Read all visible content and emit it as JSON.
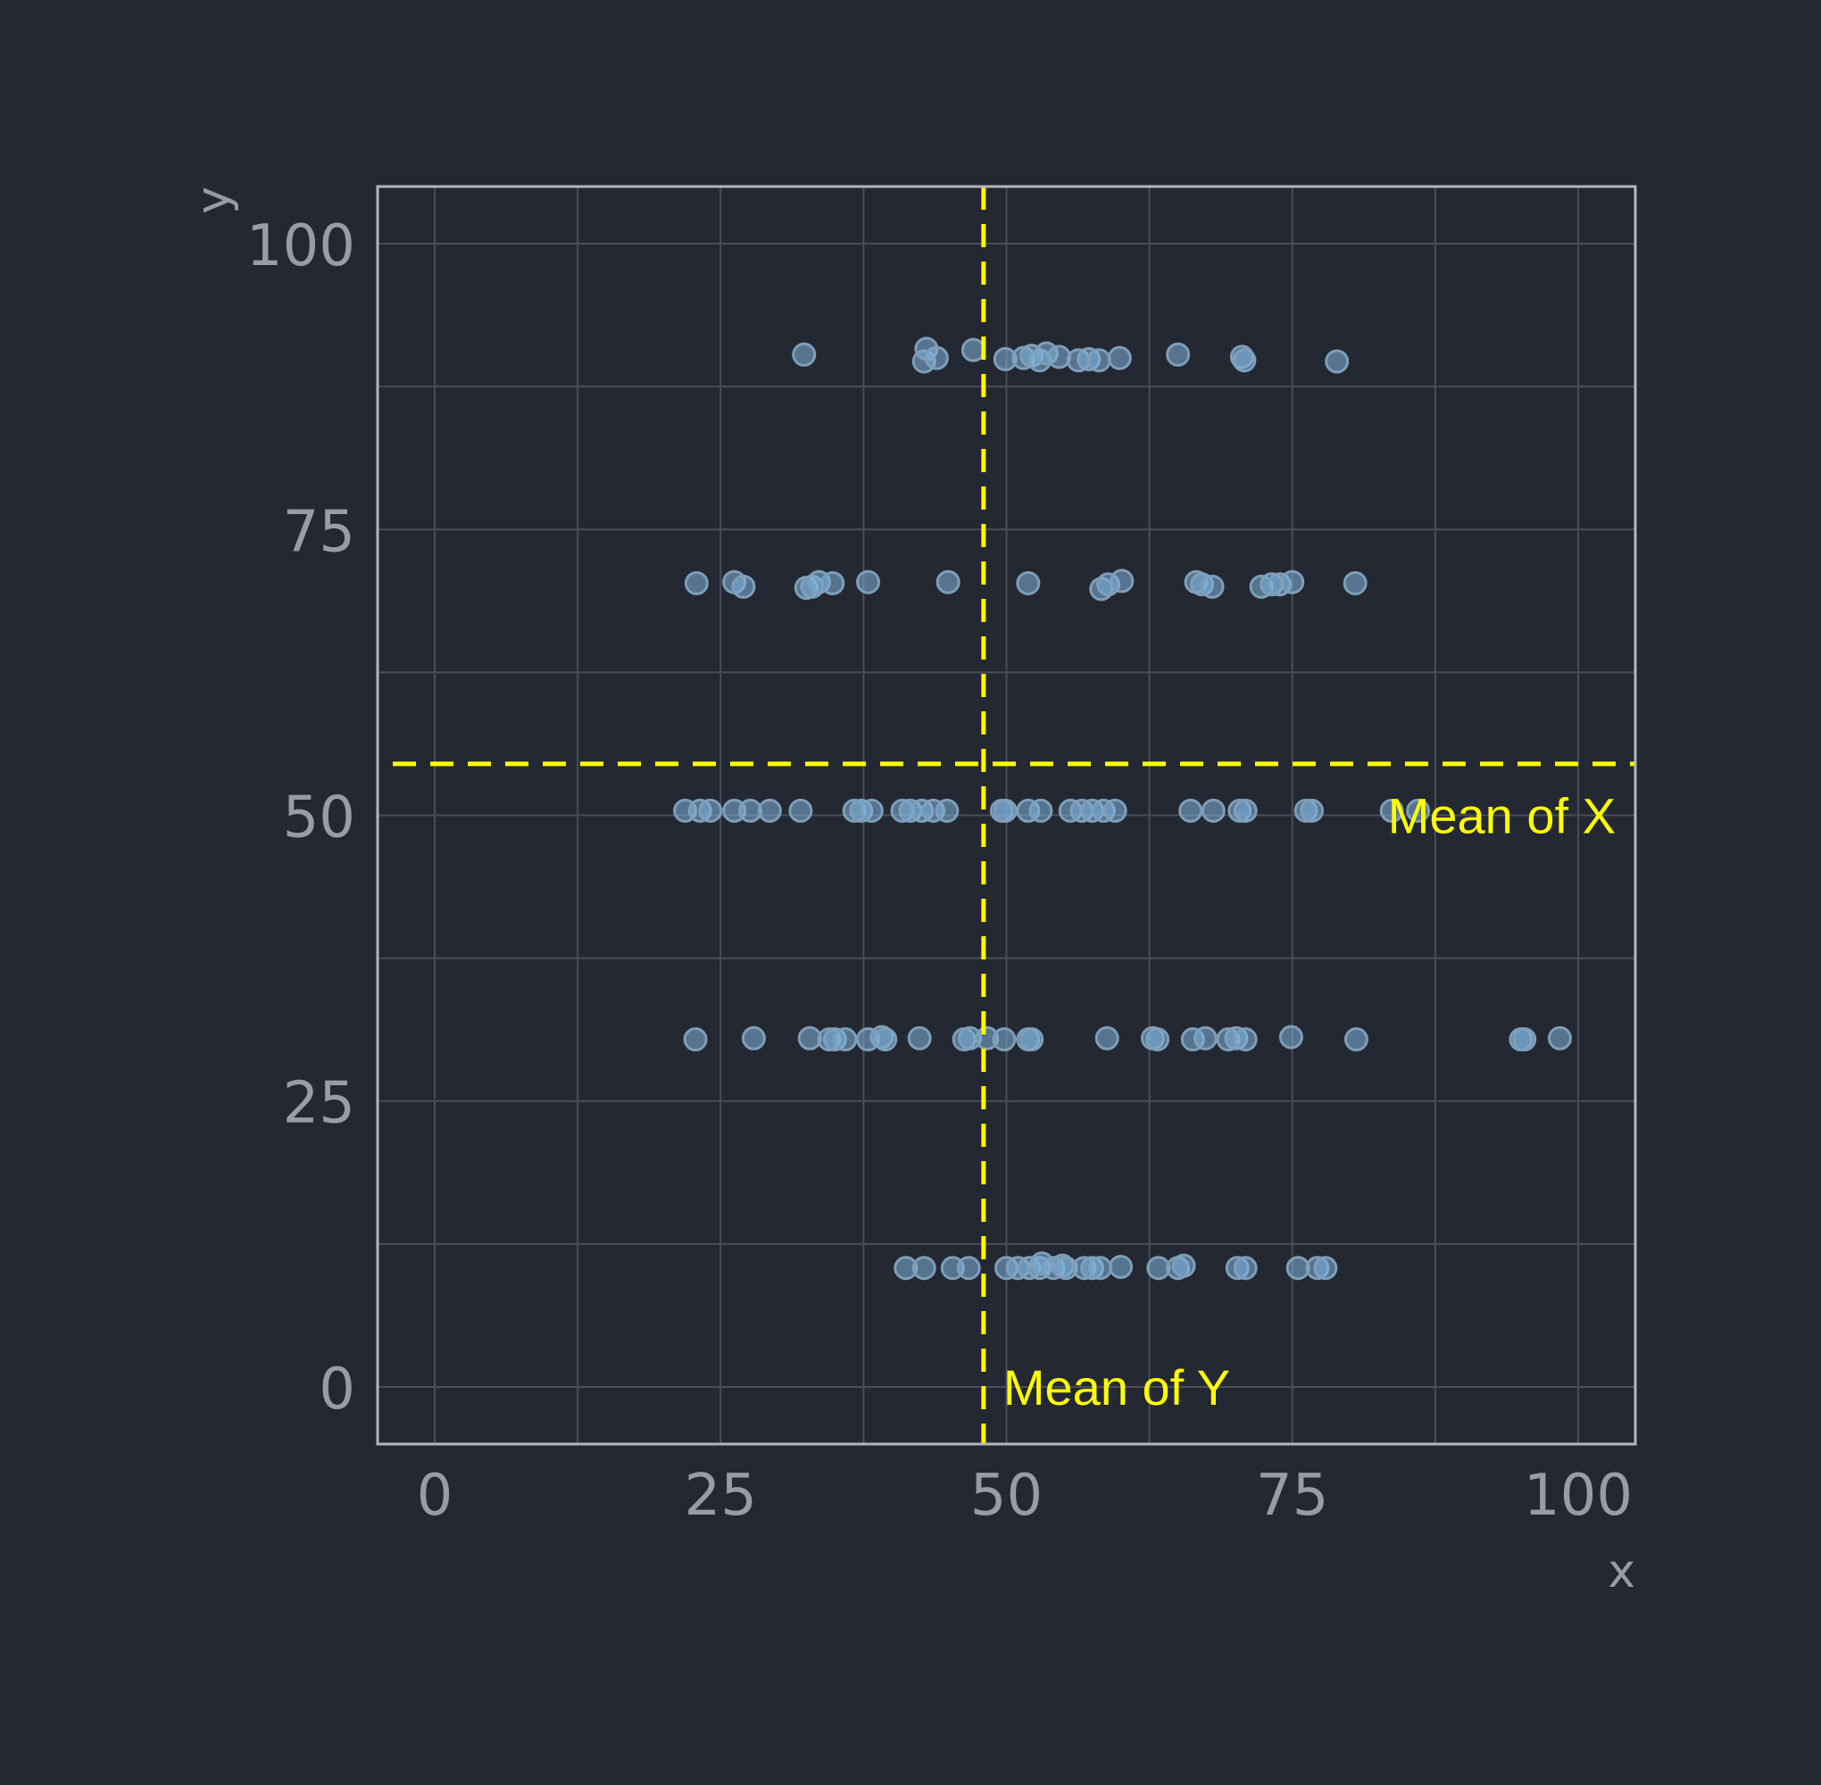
{
  "chart_data": {
    "type": "scatter",
    "xlabel": "x",
    "ylabel": "y",
    "xlim": [
      -5,
      105
    ],
    "ylim": [
      -5,
      105
    ],
    "xticks": [
      0,
      25,
      50,
      75,
      100
    ],
    "yticks": [
      0,
      25,
      50,
      75,
      100
    ],
    "grid": true,
    "point_color": "#7fb2dd",
    "line_color": "#ffff00",
    "background": "#242832",
    "reference_lines": [
      {
        "orientation": "vertical",
        "value": 48,
        "label": "Mean of Y"
      },
      {
        "orientation": "horizontal",
        "value": 54.5,
        "label": "Mean of X"
      }
    ],
    "points": [
      {
        "x": 32.3,
        "y": 90.3
      },
      {
        "x": 42.8,
        "y": 89.7
      },
      {
        "x": 43.0,
        "y": 90.8
      },
      {
        "x": 43.9,
        "y": 90.0
      },
      {
        "x": 47.1,
        "y": 90.7
      },
      {
        "x": 49.9,
        "y": 89.9
      },
      {
        "x": 51.5,
        "y": 90.0
      },
      {
        "x": 52.2,
        "y": 90.2
      },
      {
        "x": 52.9,
        "y": 89.8
      },
      {
        "x": 53.5,
        "y": 90.4
      },
      {
        "x": 54.6,
        "y": 90.1
      },
      {
        "x": 56.3,
        "y": 89.8
      },
      {
        "x": 57.2,
        "y": 89.9
      },
      {
        "x": 58.1,
        "y": 89.8
      },
      {
        "x": 59.9,
        "y": 90.0
      },
      {
        "x": 65.0,
        "y": 90.3
      },
      {
        "x": 70.6,
        "y": 90.1
      },
      {
        "x": 70.8,
        "y": 89.8
      },
      {
        "x": 78.9,
        "y": 89.7
      },
      {
        "x": 22.9,
        "y": 70.3
      },
      {
        "x": 26.2,
        "y": 70.4
      },
      {
        "x": 27.0,
        "y": 70.0
      },
      {
        "x": 32.5,
        "y": 69.9
      },
      {
        "x": 33.0,
        "y": 70.0
      },
      {
        "x": 33.6,
        "y": 70.4
      },
      {
        "x": 34.8,
        "y": 70.3
      },
      {
        "x": 37.9,
        "y": 70.4
      },
      {
        "x": 44.9,
        "y": 70.4
      },
      {
        "x": 51.9,
        "y": 70.3
      },
      {
        "x": 58.3,
        "y": 69.8
      },
      {
        "x": 58.9,
        "y": 70.2
      },
      {
        "x": 60.1,
        "y": 70.5
      },
      {
        "x": 66.6,
        "y": 70.4
      },
      {
        "x": 67.1,
        "y": 70.2
      },
      {
        "x": 68.0,
        "y": 70.0
      },
      {
        "x": 72.3,
        "y": 70.0
      },
      {
        "x": 73.2,
        "y": 70.2
      },
      {
        "x": 73.9,
        "y": 70.2
      },
      {
        "x": 75.0,
        "y": 70.4
      },
      {
        "x": 80.5,
        "y": 70.3
      },
      {
        "x": 21.9,
        "y": 50.4
      },
      {
        "x": 23.2,
        "y": 50.4
      },
      {
        "x": 24.1,
        "y": 50.4
      },
      {
        "x": 26.2,
        "y": 50.4
      },
      {
        "x": 27.6,
        "y": 50.4
      },
      {
        "x": 29.3,
        "y": 50.4
      },
      {
        "x": 32.0,
        "y": 50.4
      },
      {
        "x": 36.7,
        "y": 50.4
      },
      {
        "x": 37.3,
        "y": 50.4
      },
      {
        "x": 38.2,
        "y": 50.4
      },
      {
        "x": 40.9,
        "y": 50.4
      },
      {
        "x": 41.6,
        "y": 50.4
      },
      {
        "x": 42.6,
        "y": 50.4
      },
      {
        "x": 43.6,
        "y": 50.4
      },
      {
        "x": 44.8,
        "y": 50.4
      },
      {
        "x": 49.6,
        "y": 50.4
      },
      {
        "x": 49.9,
        "y": 50.4
      },
      {
        "x": 51.9,
        "y": 50.4
      },
      {
        "x": 53.0,
        "y": 50.4
      },
      {
        "x": 55.6,
        "y": 50.4
      },
      {
        "x": 56.6,
        "y": 50.4
      },
      {
        "x": 57.5,
        "y": 50.4
      },
      {
        "x": 58.5,
        "y": 50.4
      },
      {
        "x": 59.5,
        "y": 50.4
      },
      {
        "x": 66.1,
        "y": 50.4
      },
      {
        "x": 68.1,
        "y": 50.4
      },
      {
        "x": 70.4,
        "y": 50.4
      },
      {
        "x": 70.9,
        "y": 50.4
      },
      {
        "x": 76.2,
        "y": 50.4
      },
      {
        "x": 76.7,
        "y": 50.4
      },
      {
        "x": 83.7,
        "y": 50.4
      },
      {
        "x": 86.0,
        "y": 50.4
      },
      {
        "x": 22.8,
        "y": 30.4
      },
      {
        "x": 27.9,
        "y": 30.5
      },
      {
        "x": 32.8,
        "y": 30.5
      },
      {
        "x": 34.5,
        "y": 30.4
      },
      {
        "x": 35.0,
        "y": 30.4
      },
      {
        "x": 35.9,
        "y": 30.4
      },
      {
        "x": 37.9,
        "y": 30.4
      },
      {
        "x": 39.1,
        "y": 30.6
      },
      {
        "x": 39.4,
        "y": 30.4
      },
      {
        "x": 42.4,
        "y": 30.5
      },
      {
        "x": 46.3,
        "y": 30.4
      },
      {
        "x": 46.8,
        "y": 30.5
      },
      {
        "x": 48.3,
        "y": 30.5
      },
      {
        "x": 49.8,
        "y": 30.4
      },
      {
        "x": 51.9,
        "y": 30.4
      },
      {
        "x": 52.2,
        "y": 30.4
      },
      {
        "x": 58.8,
        "y": 30.5
      },
      {
        "x": 62.8,
        "y": 30.5
      },
      {
        "x": 63.2,
        "y": 30.4
      },
      {
        "x": 66.3,
        "y": 30.4
      },
      {
        "x": 67.4,
        "y": 30.5
      },
      {
        "x": 69.4,
        "y": 30.4
      },
      {
        "x": 70.1,
        "y": 30.5
      },
      {
        "x": 70.9,
        "y": 30.4
      },
      {
        "x": 74.9,
        "y": 30.6
      },
      {
        "x": 80.6,
        "y": 30.4
      },
      {
        "x": 95.0,
        "y": 30.4
      },
      {
        "x": 95.3,
        "y": 30.4
      },
      {
        "x": 98.4,
        "y": 30.5
      },
      {
        "x": 41.2,
        "y": 10.4
      },
      {
        "x": 42.8,
        "y": 10.4
      },
      {
        "x": 45.3,
        "y": 10.4
      },
      {
        "x": 46.7,
        "y": 10.4
      },
      {
        "x": 50.0,
        "y": 10.4
      },
      {
        "x": 51.0,
        "y": 10.4
      },
      {
        "x": 52.0,
        "y": 10.4
      },
      {
        "x": 52.9,
        "y": 10.4
      },
      {
        "x": 53.1,
        "y": 10.8
      },
      {
        "x": 54.1,
        "y": 10.4
      },
      {
        "x": 54.9,
        "y": 10.6
      },
      {
        "x": 55.2,
        "y": 10.4
      },
      {
        "x": 56.8,
        "y": 10.4
      },
      {
        "x": 57.5,
        "y": 10.4
      },
      {
        "x": 58.2,
        "y": 10.4
      },
      {
        "x": 60.0,
        "y": 10.5
      },
      {
        "x": 63.3,
        "y": 10.4
      },
      {
        "x": 65.0,
        "y": 10.4
      },
      {
        "x": 65.5,
        "y": 10.6
      },
      {
        "x": 70.2,
        "y": 10.4
      },
      {
        "x": 70.9,
        "y": 10.4
      },
      {
        "x": 75.5,
        "y": 10.4
      },
      {
        "x": 77.2,
        "y": 10.4
      },
      {
        "x": 77.9,
        "y": 10.4
      }
    ]
  }
}
